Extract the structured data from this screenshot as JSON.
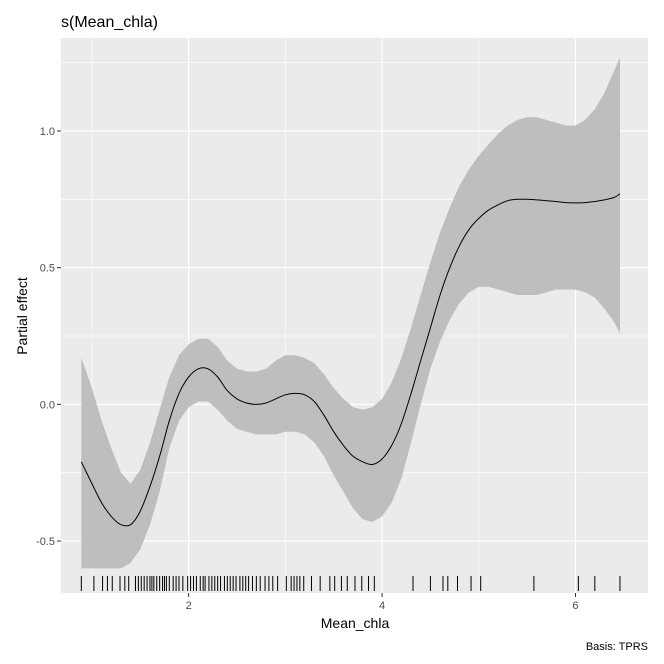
{
  "chart_data": {
    "type": "line",
    "title": "s(Mean_chla)",
    "xlabel": "Mean_chla",
    "ylabel": "Partial effect",
    "caption": "Basis: TPRS",
    "xlim": [
      0.68,
      6.75
    ],
    "ylim": [
      -0.69,
      1.34
    ],
    "x_ticks": [
      2,
      4,
      6
    ],
    "x_tick_labels": [
      "2",
      "4",
      "6"
    ],
    "y_ticks": [
      -0.5,
      0.0,
      0.5,
      1.0
    ],
    "y_tick_labels": [
      "-0.5",
      "0.0",
      "0.5",
      "1.0"
    ],
    "grid": true,
    "colors": {
      "panel_background": "#EBEBEB",
      "grid": "#FFFFFF",
      "ribbon": "#BEBEBE",
      "line": "#000000",
      "rug": "#000000"
    },
    "series": [
      {
        "x": [
          0.89,
          1.0,
          1.1,
          1.2,
          1.3,
          1.4,
          1.5,
          1.6,
          1.7,
          1.8,
          1.9,
          2.0,
          2.1,
          2.2,
          2.3,
          2.4,
          2.5,
          2.6,
          2.7,
          2.8,
          2.9,
          3.0,
          3.1,
          3.2,
          3.3,
          3.4,
          3.5,
          3.6,
          3.7,
          3.8,
          3.9,
          4.0,
          4.1,
          4.2,
          4.3,
          4.4,
          4.5,
          4.6,
          4.7,
          4.8,
          4.9,
          5.0,
          5.1,
          5.2,
          5.3,
          5.4,
          5.5,
          5.6,
          5.7,
          5.8,
          5.9,
          6.0,
          6.1,
          6.2,
          6.3,
          6.4,
          6.46
        ],
        "values": [
          -0.21,
          -0.29,
          -0.36,
          -0.41,
          -0.44,
          -0.44,
          -0.39,
          -0.3,
          -0.19,
          -0.06,
          0.04,
          0.1,
          0.13,
          0.13,
          0.1,
          0.05,
          0.02,
          0.005,
          0.0,
          0.005,
          0.02,
          0.035,
          0.04,
          0.035,
          0.01,
          -0.04,
          -0.1,
          -0.15,
          -0.19,
          -0.21,
          -0.22,
          -0.2,
          -0.15,
          -0.07,
          0.04,
          0.16,
          0.28,
          0.4,
          0.5,
          0.58,
          0.64,
          0.68,
          0.71,
          0.73,
          0.745,
          0.75,
          0.75,
          0.748,
          0.745,
          0.742,
          0.738,
          0.737,
          0.738,
          0.742,
          0.748,
          0.757,
          0.77
        ],
        "lower": [
          -0.6,
          -0.6,
          -0.6,
          -0.6,
          -0.6,
          -0.58,
          -0.53,
          -0.44,
          -0.32,
          -0.16,
          -0.06,
          -0.01,
          0.01,
          0.01,
          -0.02,
          -0.06,
          -0.09,
          -0.1,
          -0.11,
          -0.11,
          -0.11,
          -0.1,
          -0.1,
          -0.11,
          -0.14,
          -0.19,
          -0.26,
          -0.32,
          -0.38,
          -0.42,
          -0.43,
          -0.41,
          -0.36,
          -0.27,
          -0.14,
          0.0,
          0.13,
          0.23,
          0.31,
          0.37,
          0.41,
          0.43,
          0.43,
          0.42,
          0.41,
          0.4,
          0.4,
          0.4,
          0.41,
          0.42,
          0.42,
          0.42,
          0.41,
          0.39,
          0.35,
          0.3,
          0.26
        ],
        "upper": [
          0.17,
          0.06,
          -0.06,
          -0.16,
          -0.25,
          -0.29,
          -0.24,
          -0.14,
          -0.02,
          0.1,
          0.18,
          0.22,
          0.24,
          0.24,
          0.21,
          0.16,
          0.13,
          0.12,
          0.12,
          0.13,
          0.16,
          0.18,
          0.18,
          0.17,
          0.15,
          0.11,
          0.06,
          0.02,
          -0.01,
          -0.02,
          -0.01,
          0.02,
          0.08,
          0.17,
          0.28,
          0.4,
          0.52,
          0.63,
          0.72,
          0.8,
          0.86,
          0.91,
          0.95,
          0.99,
          1.02,
          1.04,
          1.05,
          1.05,
          1.04,
          1.03,
          1.02,
          1.02,
          1.04,
          1.08,
          1.14,
          1.22,
          1.27
        ]
      }
    ],
    "rug": [
      0.89,
      1.02,
      1.11,
      1.16,
      1.21,
      1.29,
      1.34,
      1.38,
      1.45,
      1.48,
      1.51,
      1.54,
      1.57,
      1.6,
      1.62,
      1.64,
      1.67,
      1.7,
      1.73,
      1.75,
      1.77,
      1.8,
      1.84,
      1.87,
      1.9,
      1.94,
      1.99,
      2.02,
      2.05,
      2.08,
      2.12,
      2.15,
      2.17,
      2.21,
      2.24,
      2.27,
      2.3,
      2.33,
      2.37,
      2.4,
      2.43,
      2.46,
      2.49,
      2.53,
      2.56,
      2.59,
      2.62,
      2.66,
      2.7,
      2.74,
      2.79,
      2.83,
      2.87,
      2.92,
      3.01,
      3.06,
      3.09,
      3.12,
      3.15,
      3.19,
      3.27,
      3.36,
      3.46,
      3.51,
      3.58,
      3.64,
      3.72,
      3.79,
      3.86,
      3.92,
      4.32,
      4.5,
      4.63,
      4.68,
      4.78,
      4.92,
      5.02,
      5.57,
      6.03,
      6.2,
      6.46
    ]
  }
}
